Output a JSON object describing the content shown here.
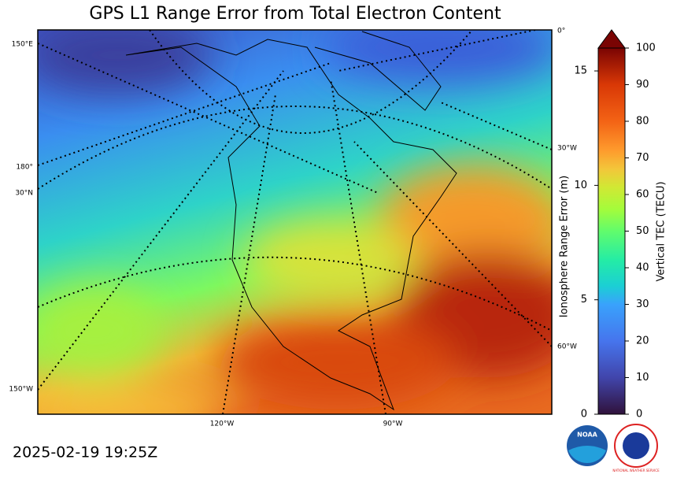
{
  "title": "GPS L1 Range Error from Total Electron Content",
  "timestamp": "2025-02-19 19:25Z",
  "map_labels": {
    "lon_150e": "150°E",
    "lon_180": "180°",
    "lat_30n": "30°N",
    "lon_150w": "150°W",
    "lon_120w": "120°W",
    "lon_90w": "90°W",
    "lon_0": "0°",
    "lon_30w": "30°W",
    "lon_60w": "60°W"
  },
  "range_axis": {
    "label": "Ionosphere Range Error (m)",
    "lim": [
      0,
      16
    ],
    "ticks": [
      0,
      5,
      10,
      15
    ]
  },
  "colorbar": {
    "label": "Vertical TEC (TECU)",
    "lim": [
      0,
      100
    ],
    "ticks": [
      0,
      10,
      20,
      30,
      40,
      50,
      60,
      70,
      80,
      90,
      100
    ]
  },
  "logos": {
    "noaa": "NOAA",
    "nws": "NATIONAL WEATHER SERVICE"
  }
}
